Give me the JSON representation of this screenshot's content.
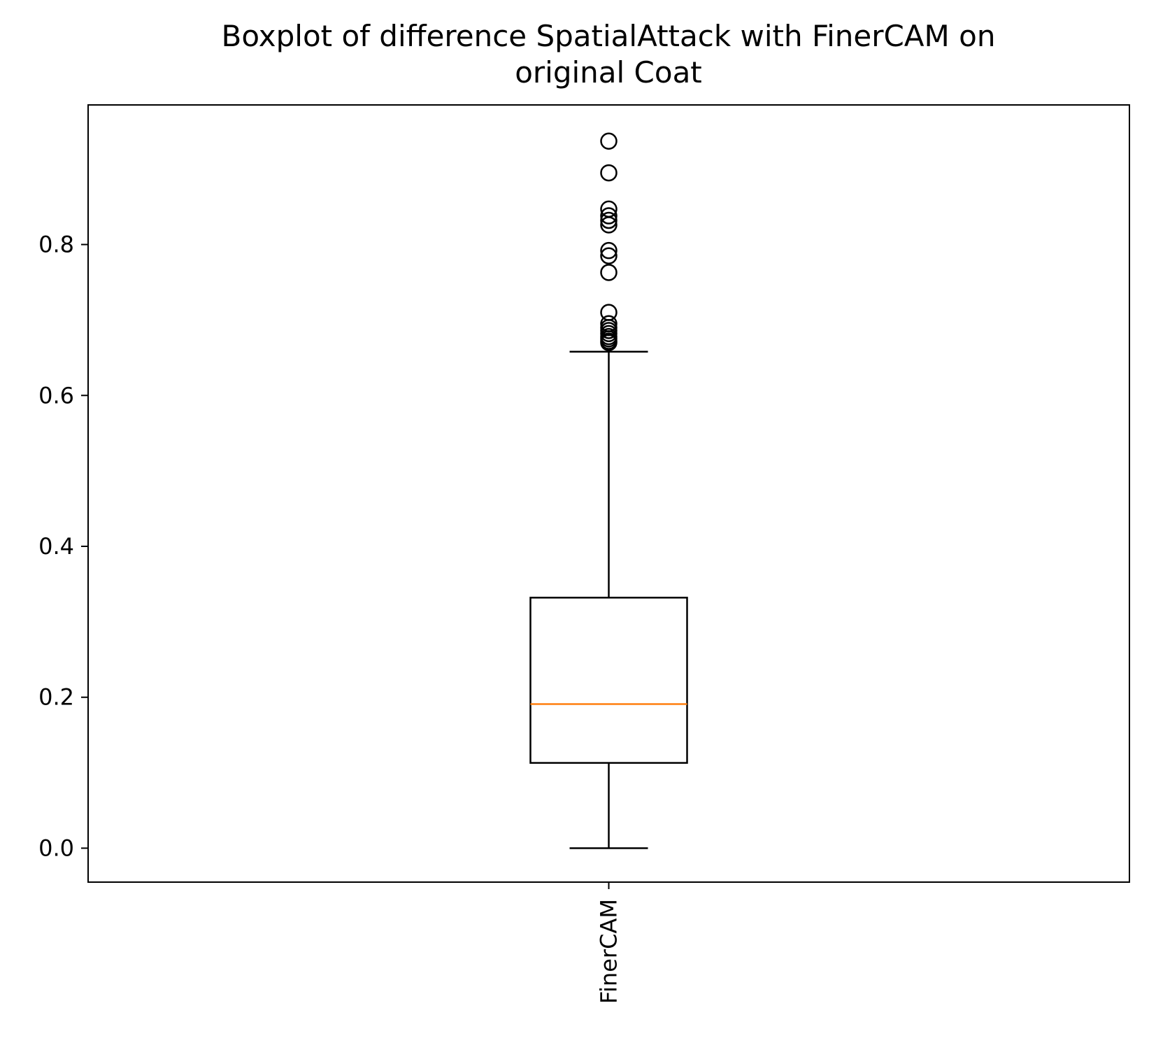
{
  "chart_data": {
    "type": "boxplot",
    "title": "Boxplot of difference SpatialAttack with FinerCAM on original Coat",
    "title_lines": [
      "Boxplot of difference SpatialAttack with FinerCAM on",
      "original Coat"
    ],
    "xlabel": "",
    "ylabel": "",
    "categories": [
      "FinerCAM"
    ],
    "ylim": [
      -0.045,
      0.985
    ],
    "yticks": [
      0.0,
      0.2,
      0.4,
      0.6,
      0.8
    ],
    "ytick_labels": [
      "0.0",
      "0.2",
      "0.4",
      "0.6",
      "0.8"
    ],
    "grid": false,
    "legend": "none",
    "boxes": [
      {
        "category": "FinerCAM",
        "whisker_low": 0.0,
        "q1": 0.113,
        "median": 0.191,
        "q3": 0.332,
        "whisker_high": 0.658,
        "outliers": [
          0.67,
          0.672,
          0.675,
          0.678,
          0.682,
          0.686,
          0.69,
          0.695,
          0.71,
          0.763,
          0.785,
          0.792,
          0.826,
          0.832,
          0.838,
          0.847,
          0.895,
          0.937
        ]
      }
    ],
    "colors": {
      "box": "#000000",
      "median": "#ff7f0e",
      "outlier": "#000000",
      "axes": "#000000"
    }
  }
}
